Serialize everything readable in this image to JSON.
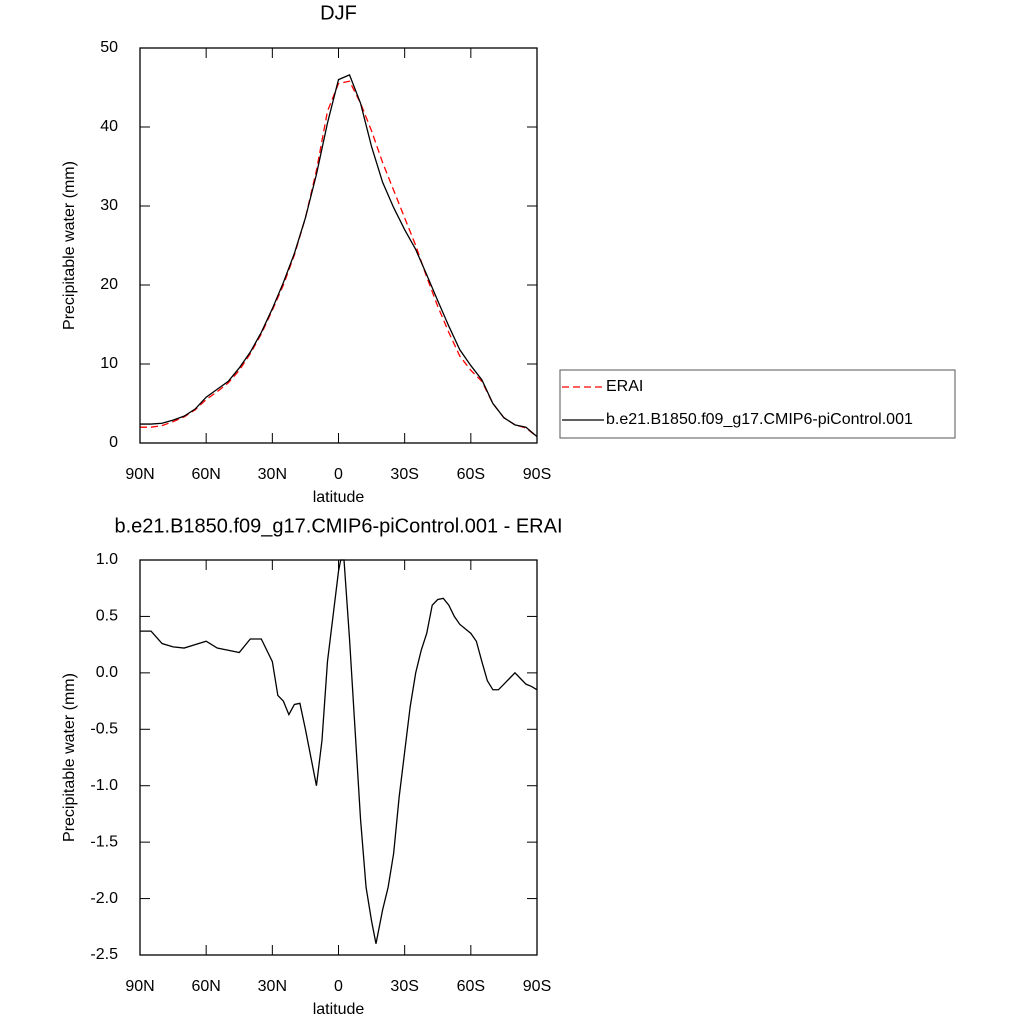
{
  "chart_data": [
    {
      "type": "line",
      "title": "DJF",
      "x_label": "latitude",
      "y_label": "Precipitable water (mm)",
      "x": [
        90,
        85,
        80,
        75,
        70,
        65,
        60,
        55,
        50,
        45,
        40,
        35,
        30,
        25,
        20,
        15,
        10,
        5,
        0,
        -5,
        -10,
        -15,
        -20,
        -25,
        -30,
        -35,
        -40,
        -45,
        -50,
        -55,
        -60,
        -65,
        -70,
        -75,
        -80,
        -85,
        -90
      ],
      "series": [
        {
          "name": "ERAI",
          "color": "#ff0000",
          "dashed": true,
          "values": [
            2.0,
            2.0,
            2.2,
            2.7,
            3.3,
            4.2,
            5.5,
            6.5,
            7.6,
            9.2,
            11.3,
            13.8,
            16.8,
            20.0,
            23.8,
            28.5,
            34.5,
            42.0,
            45.5,
            45.8,
            43.0,
            39.5,
            35.5,
            32.0,
            28.5,
            25.0,
            21.0,
            17.3,
            14.0,
            11.0,
            9.2,
            7.8,
            5.0,
            3.2,
            2.3,
            1.9,
            0.8
          ]
        },
        {
          "name": "b.e21.B1850.f09_g17.CMIP6-piControl.001",
          "color": "#000000",
          "dashed": false,
          "values": [
            2.4,
            2.4,
            2.5,
            2.9,
            3.4,
            4.3,
            5.8,
            6.8,
            7.8,
            9.5,
            11.5,
            14.0,
            17.0,
            20.3,
            24.0,
            28.5,
            34.0,
            40.5,
            46.0,
            46.6,
            43.0,
            37.5,
            33.0,
            29.8,
            27.0,
            24.5,
            21.3,
            18.0,
            14.8,
            11.8,
            9.8,
            8.0,
            5.0,
            3.2,
            2.3,
            2.0,
            0.8
          ]
        }
      ],
      "xlim": [
        90,
        -90
      ],
      "xticks": [
        {
          "value": 90,
          "label": "90N"
        },
        {
          "value": 60,
          "label": "60N"
        },
        {
          "value": 30,
          "label": "30N"
        },
        0,
        {
          "value": -30,
          "label": "30S"
        },
        {
          "value": -60,
          "label": "60S"
        },
        {
          "value": -90,
          "label": "90S"
        }
      ],
      "ylim": [
        0,
        50
      ],
      "yticks": [
        0,
        10,
        20,
        30,
        40,
        50
      ],
      "legend": "right"
    },
    {
      "type": "line",
      "title": "b.e21.B1850.f09_g17.CMIP6-piControl.001 - ERAI",
      "x_label": "latitude",
      "y_label": "Precipitable water (mm)",
      "x": [
        90,
        85,
        80,
        75,
        70,
        65,
        60,
        55,
        50,
        45,
        40,
        35,
        30,
        27.5,
        25,
        22.5,
        20,
        17.5,
        15,
        12.5,
        10,
        7.5,
        5,
        2.5,
        0,
        -1,
        -2.5,
        -5,
        -7.5,
        -10,
        -12.5,
        -15,
        -17,
        -20,
        -22.5,
        -25,
        -27.5,
        -30,
        -32.5,
        -35,
        -37.5,
        -40,
        -42.5,
        -45,
        -47.5,
        -50,
        -52.5,
        -55,
        -60,
        -62.5,
        -65,
        -67.5,
        -70,
        -72.5,
        -75,
        -77.5,
        -80,
        -82.5,
        -85,
        -87.5,
        -90
      ],
      "series": [
        {
          "name": null,
          "color": "#000000",
          "dashed": false,
          "values": [
            0.37,
            0.37,
            0.26,
            0.23,
            0.22,
            0.25,
            0.28,
            0.22,
            0.2,
            0.18,
            0.3,
            0.3,
            0.1,
            -0.2,
            -0.25,
            -0.37,
            -0.28,
            -0.27,
            -0.5,
            -0.75,
            -1.0,
            -0.6,
            0.1,
            0.5,
            0.9,
            1.0,
            1.0,
            0.3,
            -0.5,
            -1.3,
            -1.9,
            -2.2,
            -2.4,
            -2.1,
            -1.9,
            -1.6,
            -1.1,
            -0.7,
            -0.3,
            0.0,
            0.2,
            0.35,
            0.6,
            0.65,
            0.66,
            0.6,
            0.5,
            0.43,
            0.35,
            0.28,
            0.1,
            -0.07,
            -0.15,
            -0.15,
            -0.1,
            -0.05,
            0.0,
            -0.05,
            -0.1,
            -0.12,
            -0.15
          ]
        }
      ],
      "xlim": [
        90,
        -90
      ],
      "xticks": [
        {
          "value": 90,
          "label": "90N"
        },
        {
          "value": 60,
          "label": "60N"
        },
        {
          "value": 30,
          "label": "30N"
        },
        0,
        {
          "value": -30,
          "label": "30S"
        },
        {
          "value": -60,
          "label": "60S"
        },
        {
          "value": -90,
          "label": "90S"
        }
      ],
      "ylim": [
        -2.5,
        1.0
      ],
      "yticks": [
        {
          "value": -2.5,
          "label": "-2.5"
        },
        {
          "value": -2,
          "label": "-2.0"
        },
        -1.5,
        {
          "value": -1,
          "label": "-1.0"
        },
        -0.5,
        {
          "value": 0,
          "label": "0.0"
        },
        0.5,
        {
          "value": 1,
          "label": "1.0"
        }
      ]
    }
  ]
}
